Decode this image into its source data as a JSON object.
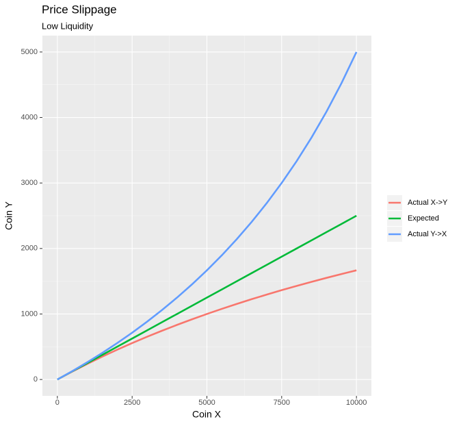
{
  "chart_data": {
    "type": "line",
    "title": "Price Slippage",
    "subtitle": "Low Liquidity",
    "x_label": "Coin X",
    "y_label": "Coin Y",
    "x": [
      0,
      500,
      1000,
      1500,
      2000,
      2500,
      3000,
      3500,
      4000,
      4500,
      5000,
      5500,
      6000,
      6500,
      7000,
      7500,
      8000,
      8500,
      9000,
      9500,
      10000
    ],
    "series": [
      {
        "name": "Actual X->Y",
        "color": "#f8766d",
        "values": [
          0,
          121.95,
          238.1,
          348.84,
          454.55,
          555.56,
          652.17,
          744.68,
          833.33,
          918.37,
          1000,
          1078.43,
          1153.85,
          1226.42,
          1296.3,
          1363.64,
          1428.57,
          1491.23,
          1551.72,
          1610.17,
          1666.67
        ]
      },
      {
        "name": "Expected",
        "color": "#00ba38",
        "values": [
          0,
          125,
          250,
          375,
          500,
          625,
          750,
          875,
          1000,
          1125,
          1250,
          1375,
          1500,
          1625,
          1750,
          1875,
          2000,
          2125,
          2250,
          2375,
          2500
        ]
      },
      {
        "name": "Actual Y->X",
        "color": "#619cff",
        "values": [
          0,
          128.21,
          263.16,
          405.41,
          555.56,
          714.29,
          882.35,
          1060.61,
          1250,
          1451.61,
          1666.67,
          1896.55,
          2142.86,
          2407.41,
          2692.31,
          3000,
          3333.33,
          3695.65,
          4090.91,
          4523.81,
          5000
        ]
      }
    ],
    "xlim": [
      -500,
      10500
    ],
    "xticks": [
      0,
      2500,
      5000,
      7500,
      10000
    ],
    "ylim": [
      -250,
      5250
    ],
    "yticks": [
      0,
      1000,
      2000,
      3000,
      4000,
      5000
    ],
    "grid": true,
    "legend": "right"
  }
}
